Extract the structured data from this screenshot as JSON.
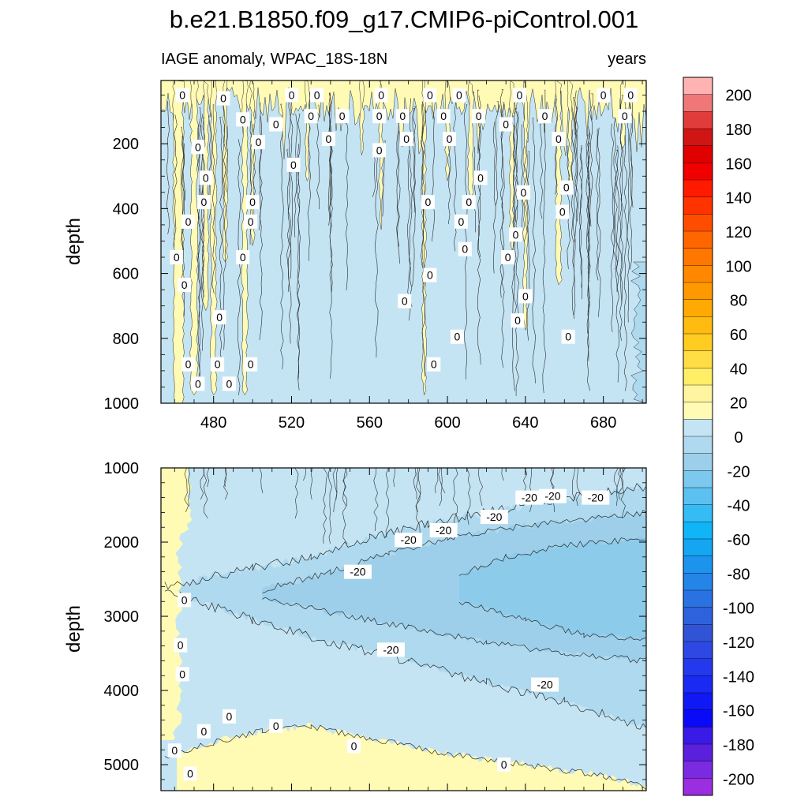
{
  "chart_data": {
    "type": "heatmap",
    "title": "b.e21.B1850.f09_g17.CMIP6-piControl.001",
    "colorbar": {
      "ticks": [
        "200",
        "180",
        "160",
        "140",
        "120",
        "100",
        "80",
        "60",
        "40",
        "20",
        "0",
        "-20",
        "-40",
        "-60",
        "-80",
        "-100",
        "-120",
        "-140",
        "-160",
        "-180",
        "-200"
      ],
      "levels_high_to_low": [
        210,
        200,
        190,
        180,
        170,
        160,
        150,
        140,
        130,
        120,
        110,
        100,
        90,
        80,
        70,
        60,
        50,
        40,
        30,
        20,
        10,
        0,
        -10,
        -20,
        -30,
        -40,
        -50,
        -60,
        -70,
        -80,
        -90,
        -100,
        -110,
        -120,
        -130,
        -140,
        -150,
        -160,
        -170,
        -180,
        -190,
        -200,
        -210
      ],
      "colors_high_to_low": [
        "#ffb3b3",
        "#f07777",
        "#e03c3c",
        "#d01515",
        "#e00000",
        "#f00000",
        "#ff1a00",
        "#ff3300",
        "#ff4d00",
        "#ff6600",
        "#ff7700",
        "#ff8800",
        "#ff9900",
        "#ffaa00",
        "#ffbb10",
        "#ffcc22",
        "#ffdd44",
        "#ffee66",
        "#fff5a0",
        "#fffab4",
        "#c4e4f4",
        "#aed9ee",
        "#9dcfeb",
        "#7cc8ee",
        "#5cc1f0",
        "#35bcf5",
        "#10b5f8",
        "#14a6f3",
        "#1c94ee",
        "#2484e8",
        "#2a72e2",
        "#2d62dc",
        "#3154d6",
        "#2e48e4",
        "#2438ee",
        "#1a2af2",
        "#1018f5",
        "#0a0af8",
        "#3a1ae6",
        "#5a20dc",
        "#7a2ae0",
        "#9a2ee0"
      ]
    },
    "panels": [
      {
        "id": "upper",
        "subtitle_left": "IAGE anomaly, WPAC_18S-18N",
        "subtitle_right": "years",
        "xlabel": "",
        "ylabel": "depth",
        "xlim": [
          453,
          702
        ],
        "ylim": [
          5,
          1000
        ],
        "y_reversed": true,
        "xticks": [
          480,
          520,
          560,
          600,
          640,
          680
        ],
        "xtick_labels": [
          "480",
          "520",
          "560",
          "600",
          "640",
          "680"
        ],
        "yticks": [
          200,
          400,
          600,
          800,
          1000
        ],
        "ytick_labels": [
          "200",
          "400",
          "600",
          "800",
          "1000"
        ],
        "contour_labels": [
          {
            "x": 464,
            "y": 50,
            "text": "0"
          },
          {
            "x": 485,
            "y": 60,
            "text": "0"
          },
          {
            "x": 520,
            "y": 50,
            "text": "0"
          },
          {
            "x": 533,
            "y": 50,
            "text": "0"
          },
          {
            "x": 566,
            "y": 50,
            "text": "0"
          },
          {
            "x": 591,
            "y": 50,
            "text": "0"
          },
          {
            "x": 606,
            "y": 50,
            "text": "0"
          },
          {
            "x": 637,
            "y": 50,
            "text": "0"
          },
          {
            "x": 680,
            "y": 50,
            "text": "0"
          },
          {
            "x": 694,
            "y": 50,
            "text": "0"
          },
          {
            "x": 495,
            "y": 125,
            "text": "0"
          },
          {
            "x": 512,
            "y": 140,
            "text": "0"
          },
          {
            "x": 530,
            "y": 115,
            "text": "0"
          },
          {
            "x": 546,
            "y": 115,
            "text": "0"
          },
          {
            "x": 565,
            "y": 115,
            "text": "0"
          },
          {
            "x": 577,
            "y": 115,
            "text": "0"
          },
          {
            "x": 598,
            "y": 115,
            "text": "0"
          },
          {
            "x": 616,
            "y": 115,
            "text": "0"
          },
          {
            "x": 630,
            "y": 140,
            "text": "0"
          },
          {
            "x": 650,
            "y": 115,
            "text": "0"
          },
          {
            "x": 691,
            "y": 115,
            "text": "0"
          },
          {
            "x": 472,
            "y": 210,
            "text": "0"
          },
          {
            "x": 503,
            "y": 195,
            "text": "0"
          },
          {
            "x": 539,
            "y": 185,
            "text": "0"
          },
          {
            "x": 565,
            "y": 220,
            "text": "0"
          },
          {
            "x": 579,
            "y": 185,
            "text": "0"
          },
          {
            "x": 601,
            "y": 185,
            "text": "0"
          },
          {
            "x": 657,
            "y": 185,
            "text": "0"
          },
          {
            "x": 521,
            "y": 265,
            "text": "0"
          },
          {
            "x": 476,
            "y": 305,
            "text": "0"
          },
          {
            "x": 617,
            "y": 305,
            "text": "0"
          },
          {
            "x": 661,
            "y": 335,
            "text": "0"
          },
          {
            "x": 639,
            "y": 350,
            "text": "0"
          },
          {
            "x": 475,
            "y": 380,
            "text": "0"
          },
          {
            "x": 500,
            "y": 380,
            "text": "0"
          },
          {
            "x": 590,
            "y": 380,
            "text": "0"
          },
          {
            "x": 611,
            "y": 380,
            "text": "0"
          },
          {
            "x": 659,
            "y": 410,
            "text": "0"
          },
          {
            "x": 467,
            "y": 440,
            "text": "0"
          },
          {
            "x": 499,
            "y": 440,
            "text": "0"
          },
          {
            "x": 607,
            "y": 440,
            "text": "0"
          },
          {
            "x": 635,
            "y": 480,
            "text": "0"
          },
          {
            "x": 609,
            "y": 525,
            "text": "0"
          },
          {
            "x": 461,
            "y": 550,
            "text": "0"
          },
          {
            "x": 495,
            "y": 550,
            "text": "0"
          },
          {
            "x": 631,
            "y": 550,
            "text": "0"
          },
          {
            "x": 591,
            "y": 605,
            "text": "0"
          },
          {
            "x": 465,
            "y": 635,
            "text": "0"
          },
          {
            "x": 640,
            "y": 670,
            "text": "0"
          },
          {
            "x": 578,
            "y": 685,
            "text": "0"
          },
          {
            "x": 483,
            "y": 735,
            "text": "0"
          },
          {
            "x": 636,
            "y": 745,
            "text": "0"
          },
          {
            "x": 605,
            "y": 795,
            "text": "0"
          },
          {
            "x": 662,
            "y": 795,
            "text": "0"
          },
          {
            "x": 467,
            "y": 880,
            "text": "0"
          },
          {
            "x": 482,
            "y": 880,
            "text": "0"
          },
          {
            "x": 499,
            "y": 880,
            "text": "0"
          },
          {
            "x": 593,
            "y": 880,
            "text": "0"
          },
          {
            "x": 472,
            "y": 940,
            "text": "0"
          },
          {
            "x": 488,
            "y": 940,
            "text": "0"
          }
        ]
      },
      {
        "id": "lower",
        "subtitle_left": "",
        "subtitle_right": "",
        "xlabel": "",
        "ylabel": "depth",
        "xlim": [
          453,
          702
        ],
        "ylim": [
          1000,
          5350
        ],
        "y_reversed": true,
        "xticks": [
          480,
          520,
          560,
          600,
          640,
          680
        ],
        "xtick_labels": [],
        "yticks": [
          1000,
          2000,
          3000,
          4000,
          5000
        ],
        "ytick_labels": [
          "1000",
          "2000",
          "3000",
          "4000",
          "5000"
        ],
        "contour_labels": [
          {
            "x": 465,
            "y": 2780,
            "text": "0"
          },
          {
            "x": 463,
            "y": 3390,
            "text": "0"
          },
          {
            "x": 464,
            "y": 3780,
            "text": "0"
          },
          {
            "x": 488,
            "y": 4350,
            "text": "0"
          },
          {
            "x": 475,
            "y": 4550,
            "text": "0"
          },
          {
            "x": 512,
            "y": 4480,
            "text": "0"
          },
          {
            "x": 460,
            "y": 4810,
            "text": "0"
          },
          {
            "x": 468,
            "y": 5120,
            "text": "0"
          },
          {
            "x": 552,
            "y": 4750,
            "text": "0"
          },
          {
            "x": 629,
            "y": 5000,
            "text": "0"
          },
          {
            "x": 554,
            "y": 2400,
            "text": "-20"
          },
          {
            "x": 580,
            "y": 1970,
            "text": "-20"
          },
          {
            "x": 598,
            "y": 1840,
            "text": "-20"
          },
          {
            "x": 624,
            "y": 1660,
            "text": "-20"
          },
          {
            "x": 642,
            "y": 1400,
            "text": "-20"
          },
          {
            "x": 654,
            "y": 1380,
            "text": "-20"
          },
          {
            "x": 676,
            "y": 1400,
            "text": "-20"
          },
          {
            "x": 571,
            "y": 3450,
            "text": "-20"
          },
          {
            "x": 650,
            "y": 3920,
            "text": "-20"
          }
        ]
      }
    ]
  }
}
